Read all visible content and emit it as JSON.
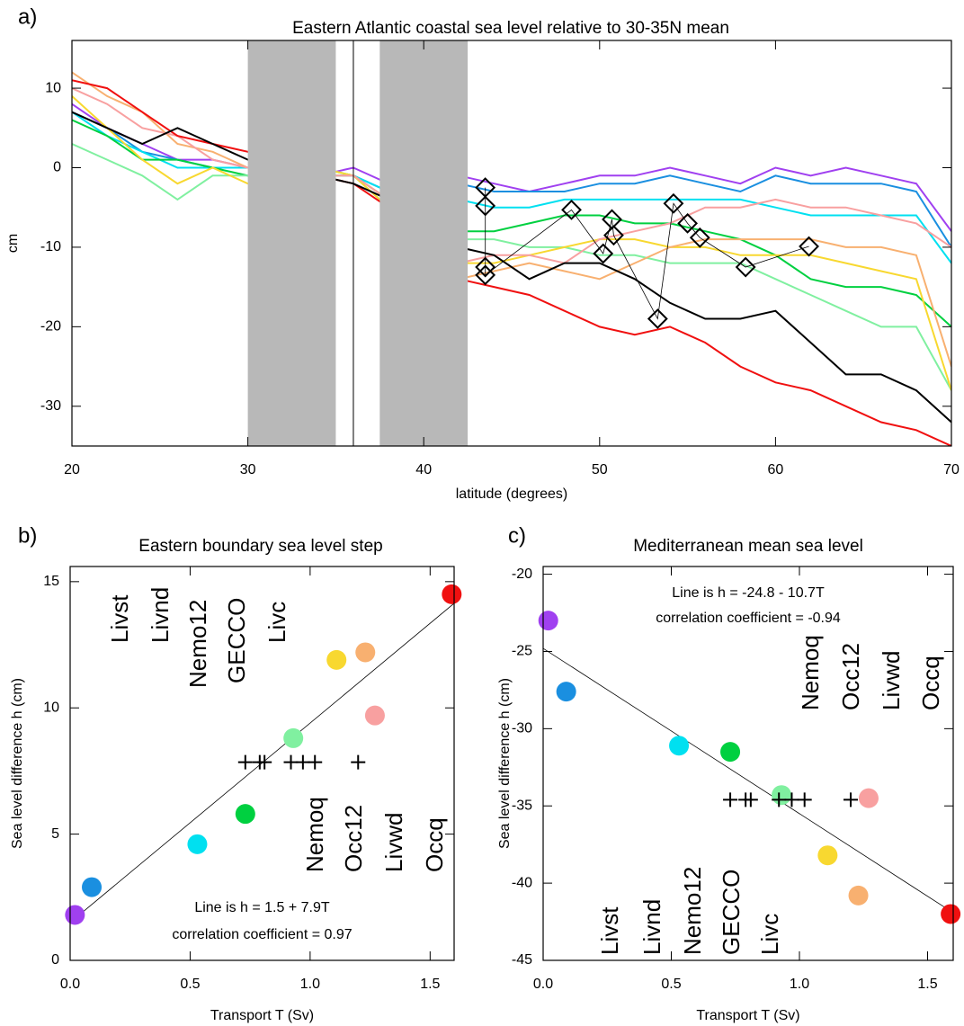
{
  "chart_data": [
    {
      "type": "line",
      "panel": "a)",
      "title": "Eastern Atlantic coastal sea level relative to 30-35N mean",
      "x_label": "latitude (degrees)",
      "y_label": "cm",
      "xlim": [
        20,
        70
      ],
      "ylim": [
        -35,
        16
      ],
      "xticks": [
        20,
        30,
        40,
        50,
        60,
        70
      ],
      "yticks": [
        -30,
        -20,
        -10,
        0,
        10
      ],
      "shaded": [
        [
          30,
          35
        ],
        [
          37.5,
          42.5
        ]
      ],
      "vlines": [
        36
      ],
      "x": [
        20,
        22,
        24,
        26,
        28,
        30,
        32,
        34,
        36,
        38,
        40,
        42,
        44,
        46,
        48,
        50,
        52,
        54,
        56,
        58,
        60,
        62,
        64,
        66,
        68,
        70
      ],
      "series": [
        {
          "color": "#a040f0",
          "values": [
            8,
            5,
            3,
            1,
            1,
            0,
            0,
            -1,
            0,
            -2,
            0,
            -1,
            -2,
            -3,
            -2,
            -1,
            -1,
            0,
            -1,
            -2,
            0,
            -1,
            0,
            -1,
            -2,
            -8
          ]
        },
        {
          "color": "#1a8fe0",
          "values": [
            7,
            5,
            2,
            1,
            0,
            0,
            0,
            -1,
            -1,
            -3,
            -1,
            -2,
            -3,
            -3,
            -3,
            -2,
            -2,
            -1,
            -2,
            -3,
            -1,
            -2,
            -2,
            -2,
            -3,
            -10
          ]
        },
        {
          "color": "#00e0f0",
          "values": [
            7,
            4,
            2,
            0,
            0,
            0,
            -1,
            -1,
            -1,
            -3,
            -3,
            -4,
            -5,
            -5,
            -4,
            -4,
            -4,
            -4,
            -4,
            -4,
            -5,
            -6,
            -6,
            -6,
            -6,
            -12
          ]
        },
        {
          "color": "#00d040",
          "values": [
            6,
            4,
            1,
            1,
            0,
            -1,
            0,
            0,
            -1,
            -4,
            -8,
            -8,
            -8,
            -7,
            -6,
            -6,
            -7,
            -7,
            -8,
            -9,
            -11,
            -14,
            -15,
            -15,
            -16,
            -20
          ]
        },
        {
          "color": "#80f0a0",
          "values": [
            3,
            1,
            -1,
            -4,
            -1,
            -1,
            -1,
            0,
            -1,
            -5,
            -10,
            -9,
            -9,
            -10,
            -10,
            -11,
            -11,
            -12,
            -12,
            -12,
            -14,
            -16,
            -18,
            -20,
            -20,
            -28
          ]
        },
        {
          "color": "#f8d830",
          "values": [
            9,
            5,
            1,
            -2,
            0,
            -2,
            -1,
            0,
            -1,
            -5,
            -13,
            -12,
            -12,
            -11,
            -10,
            -9,
            -9,
            -10,
            -10,
            -11,
            -11,
            -11,
            -12,
            -13,
            -14,
            -28
          ]
        },
        {
          "color": "#f8b070",
          "values": [
            12,
            9,
            7,
            3,
            2,
            0,
            0,
            -1,
            -1,
            -4,
            -12,
            -14,
            -13,
            -12,
            -13,
            -14,
            -12,
            -10,
            -9,
            -9,
            -9,
            -9,
            -10,
            -10,
            -11,
            -25
          ]
        },
        {
          "color": "#f8a0a0",
          "values": [
            10,
            8,
            5,
            4,
            1,
            0,
            -1,
            -1,
            -1,
            -4,
            -12,
            -12,
            -11,
            -11,
            -12,
            -9,
            -8,
            -7,
            -5,
            -5,
            -4,
            -5,
            -5,
            -6,
            -7,
            -10
          ]
        },
        {
          "color": "#f01010",
          "values": [
            11,
            10,
            7,
            4,
            3,
            2,
            0,
            -1,
            -2,
            -5,
            -12,
            -14,
            -15,
            -16,
            -18,
            -20,
            -21,
            -20,
            -22,
            -25,
            -27,
            -28,
            -30,
            -32,
            -33,
            -35
          ]
        },
        {
          "color": "#000000",
          "values": [
            7,
            5,
            3,
            5,
            3,
            1,
            0,
            -1,
            -2,
            -4,
            -8,
            -10,
            -11,
            -14,
            -12,
            -12,
            -14,
            -17,
            -19,
            -19,
            -18,
            -22,
            -26,
            -26,
            -28,
            -32
          ]
        },
        {
          "color": "#000000",
          "marker": "diamond",
          "x": [
            43.5,
            43.5,
            43.5,
            43.5,
            48.4,
            50.2,
            50.7,
            50.8,
            53.3,
            54.2,
            55,
            55.7,
            58.3,
            61.9
          ],
          "values": [
            -2.5,
            -4.8,
            -12.5,
            -13.5,
            -5.3,
            -10.8,
            -6.5,
            -8.5,
            -19,
            -4.5,
            -7,
            -8.8,
            -12.5,
            -9.9
          ]
        }
      ]
    },
    {
      "type": "scatter",
      "panel": "b)",
      "title": "Eastern boundary sea level step",
      "x_label": "Transport T (Sv)",
      "y_label": "Sea level difference h (cm)",
      "xlim": [
        0,
        1.6
      ],
      "ylim": [
        0,
        15.6
      ],
      "xticks": [
        {
          "value": 0,
          "label": "0.0"
        },
        {
          "value": 0.5,
          "label": "0.5"
        },
        {
          "value": 1,
          "label": "1.0"
        },
        {
          "value": 1.5,
          "label": "1.5"
        }
      ],
      "yticks": [
        0,
        5,
        10,
        15
      ],
      "fit": {
        "intercept": 1.5,
        "slope": 7.9
      },
      "annotations": [
        "Line is h = 1.5 + 7.9T",
        "correlation coefficient =  0.97"
      ],
      "series": [
        {
          "name": "Livst",
          "color": "#a040f0",
          "x": [
            0.02
          ],
          "values": [
            1.8
          ]
        },
        {
          "name": "Livnd",
          "color": "#1a8fe0",
          "x": [
            0.09
          ],
          "values": [
            2.9
          ]
        },
        {
          "name": "Nemo12",
          "color": "#00e0f0",
          "x": [
            0.53
          ],
          "values": [
            4.6
          ]
        },
        {
          "name": "GECCO",
          "color": "#00d040",
          "x": [
            0.73
          ],
          "values": [
            5.8
          ]
        },
        {
          "name": "Livc",
          "color": "#80f0a0",
          "x": [
            0.93
          ],
          "values": [
            8.8
          ]
        },
        {
          "name": "Nemoq",
          "color": "#f8d830",
          "x": [
            1.11
          ],
          "values": [
            11.9
          ]
        },
        {
          "name": "Occ12",
          "color": "#f8b070",
          "x": [
            1.23
          ],
          "values": [
            12.2
          ]
        },
        {
          "name": "Livwd",
          "color": "#f8a0a0",
          "x": [
            1.27
          ],
          "values": [
            9.7
          ]
        },
        {
          "name": "Occq",
          "color": "#f01010",
          "x": [
            1.59
          ],
          "values": [
            14.5
          ]
        },
        {
          "color": "#000000",
          "marker": "cross",
          "x": [
            0.73,
            0.79,
            0.81,
            0.92,
            0.97,
            1.02,
            1.2
          ],
          "values": [
            7.85,
            7.85,
            7.85,
            7.85,
            7.85,
            7.85,
            7.85
          ]
        }
      ]
    },
    {
      "type": "scatter",
      "panel": "c)",
      "title": "Mediterranean mean sea level",
      "x_label": "Transport T (Sv)",
      "y_label": "Sea level difference h (cm)",
      "xlim": [
        0,
        1.6
      ],
      "ylim": [
        -45,
        -19.5
      ],
      "xticks": [
        {
          "value": 0,
          "label": "0.0"
        },
        {
          "value": 0.5,
          "label": "0.5"
        },
        {
          "value": 1,
          "label": "1.0"
        },
        {
          "value": 1.5,
          "label": "1.5"
        }
      ],
      "yticks": [
        -45,
        -40,
        -35,
        -30,
        -25,
        -20
      ],
      "fit": {
        "intercept": -24.8,
        "slope": -10.7
      },
      "annotations": [
        "Line is h =  -24.8 - 10.7T",
        "correlation coefficient =  -0.94"
      ],
      "series": [
        {
          "name": "Livst",
          "color": "#a040f0",
          "x": [
            0.02
          ],
          "values": [
            -23
          ]
        },
        {
          "name": "Livnd",
          "color": "#1a8fe0",
          "x": [
            0.09
          ],
          "values": [
            -27.6
          ]
        },
        {
          "name": "Nemo12",
          "color": "#00e0f0",
          "x": [
            0.53
          ],
          "values": [
            -31.1
          ]
        },
        {
          "name": "GECCO",
          "color": "#00d040",
          "x": [
            0.73
          ],
          "values": [
            -31.5
          ]
        },
        {
          "name": "Livc",
          "color": "#80f0a0",
          "x": [
            0.93
          ],
          "values": [
            -34.3
          ]
        },
        {
          "name": "Nemoq",
          "color": "#f8d830",
          "x": [
            1.11
          ],
          "values": [
            -38.2
          ]
        },
        {
          "name": "Occ12",
          "color": "#f8b070",
          "x": [
            1.23
          ],
          "values": [
            -40.8
          ]
        },
        {
          "name": "Livwd",
          "color": "#f8a0a0",
          "x": [
            1.27
          ],
          "values": [
            -34.5
          ]
        },
        {
          "name": "Occq",
          "color": "#f01010",
          "x": [
            1.59
          ],
          "values": [
            -42
          ]
        },
        {
          "color": "#000000",
          "marker": "cross",
          "x": [
            0.73,
            0.79,
            0.81,
            0.92,
            0.97,
            1.02,
            1.2
          ],
          "values": [
            -34.6,
            -34.6,
            -34.6,
            -34.6,
            -34.6,
            -34.6,
            -34.6
          ]
        }
      ]
    }
  ]
}
